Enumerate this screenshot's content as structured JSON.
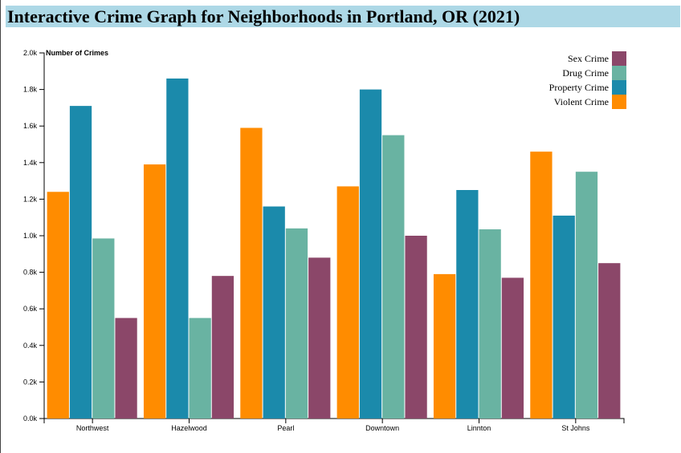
{
  "page": {
    "title": "Interactive Crime Graph for Neighborhoods in Portland, OR (2021)"
  },
  "chart_data": {
    "type": "bar",
    "title": "Interactive Crime Graph for Neighborhoods in Portland, OR (2021)",
    "xlabel": "",
    "ylabel": "Number of Crimes",
    "ylim": [
      0,
      2000
    ],
    "yticks": [
      0,
      200,
      400,
      600,
      800,
      1000,
      1200,
      1400,
      1600,
      1800,
      2000
    ],
    "ytick_labels": [
      "0.0k",
      "0.2k",
      "0.4k",
      "0.6k",
      "0.8k",
      "1.0k",
      "1.2k",
      "1.4k",
      "1.6k",
      "1.8k",
      "2.0k"
    ],
    "grid": false,
    "legend_position": "top-right",
    "categories": [
      "Northwest",
      "Hazelwood",
      "Pearl",
      "Downtown",
      "Linnton",
      "St Johns"
    ],
    "series": [
      {
        "name": "Violent Crime",
        "color": "#ff8c00",
        "values": [
          1240,
          1390,
          1590,
          1270,
          790,
          1460
        ]
      },
      {
        "name": "Property Crime",
        "color": "#1b8aab",
        "values": [
          1710,
          1860,
          1160,
          1800,
          1250,
          1110
        ]
      },
      {
        "name": "Drug Crime",
        "color": "#69b3a2",
        "values": [
          985,
          550,
          1040,
          1550,
          1035,
          1350
        ]
      },
      {
        "name": "Sex Crime",
        "color": "#8b4769",
        "values": [
          550,
          780,
          880,
          1000,
          770,
          850
        ]
      }
    ],
    "legend_order": [
      "Sex Crime",
      "Drug Crime",
      "Property Crime",
      "Violent Crime"
    ]
  }
}
